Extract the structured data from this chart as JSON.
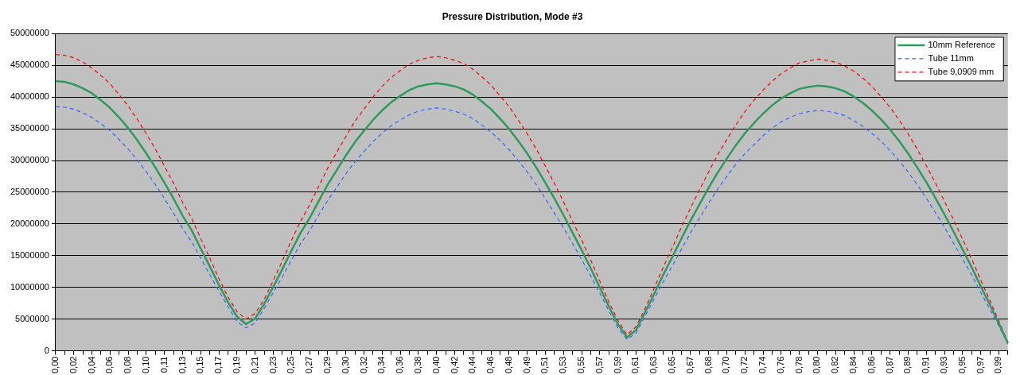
{
  "chart_data": {
    "type": "line",
    "title": "Pressure Distribution, Mode #3",
    "categories": [
      "0,00",
      null,
      "0,02",
      null,
      "0,04",
      null,
      "0,06",
      null,
      "0,08",
      null,
      "0,10",
      null,
      "0,11",
      null,
      "0,13",
      null,
      "0,15",
      null,
      "0,17",
      null,
      "0,19",
      null,
      "0,21",
      null,
      "0,23",
      null,
      "0,25",
      null,
      "0,27",
      null,
      "0,29",
      null,
      "0,30",
      null,
      "0,32",
      null,
      "0,34",
      null,
      "0,36",
      null,
      "0,38",
      null,
      "0,40",
      null,
      "0,42",
      null,
      "0,44",
      null,
      "0,46",
      null,
      "0,48",
      null,
      "0,49",
      null,
      "0,51",
      null,
      "0,53",
      null,
      "0,55",
      null,
      "0,57",
      null,
      "0,59",
      null,
      "0,61",
      null,
      "0,63",
      null,
      "0,65",
      null,
      "0,67",
      null,
      "0,68",
      null,
      "0,70",
      null,
      "0,72",
      null,
      "0,74",
      null,
      "0,76",
      null,
      "0,78",
      null,
      "0,80",
      null,
      "0,82",
      null,
      "0,84",
      null,
      "0,86",
      null,
      "0,87",
      null,
      "0,89",
      null,
      "0,91",
      null,
      "0,93",
      null,
      "0,95",
      null,
      "0,97",
      null,
      "0,99",
      null
    ],
    "series": [
      {
        "name": "10mm Reference",
        "color": "#2e9a5e",
        "line_style": "solid",
        "values": [
          42500000,
          42400000,
          42000000,
          41400000,
          40600000,
          39500000,
          38300000,
          36800000,
          35100000,
          33200000,
          31100000,
          28900000,
          26500000,
          24000000,
          21300000,
          19000000,
          16100000,
          13300000,
          10400000,
          7700000,
          5400000,
          4200000,
          5100000,
          7400000,
          10100000,
          12900000,
          15800000,
          18600000,
          20900000,
          23600000,
          26200000,
          28500000,
          30800000,
          32900000,
          34700000,
          36400000,
          37900000,
          39200000,
          40200000,
          41100000,
          41700000,
          42000000,
          42200000,
          42000000,
          41700000,
          41200000,
          40400000,
          39300000,
          38100000,
          36600000,
          35000000,
          33100000,
          31100000,
          28900000,
          26500000,
          24000000,
          21400000,
          18600000,
          15900000,
          13000000,
          10000000,
          7000000,
          4200000,
          2100000,
          3300000,
          6100000,
          9000000,
          12000000,
          14800000,
          17700000,
          20500000,
          23100000,
          25700000,
          28100000,
          30300000,
          32400000,
          34300000,
          35900000,
          37400000,
          38700000,
          39800000,
          40600000,
          41300000,
          41600000,
          41800000,
          41700000,
          41400000,
          40900000,
          40100000,
          39100000,
          37900000,
          36500000,
          34900000,
          33100000,
          31100000,
          28900000,
          26600000,
          24100000,
          21500000,
          18800000,
          16000000,
          13200000,
          10200000,
          7300000,
          4300000,
          1200000
        ]
      },
      {
        "name": "Tube 11mm",
        "color": "#3366ff",
        "line_style": "dashed",
        "values": [
          38500000,
          38400000,
          38100000,
          37500000,
          36800000,
          35800000,
          34700000,
          33300000,
          31800000,
          30100000,
          28200000,
          26200000,
          24000000,
          21700000,
          19300000,
          17200000,
          14600000,
          12000000,
          9400000,
          7000000,
          4600000,
          3600000,
          4400000,
          6700000,
          9200000,
          11700000,
          14300000,
          16900000,
          18900000,
          21400000,
          23700000,
          25800000,
          27900000,
          29800000,
          31400000,
          33000000,
          34300000,
          35500000,
          36400000,
          37200000,
          37800000,
          38100000,
          38300000,
          38100000,
          37800000,
          37300000,
          36600000,
          35600000,
          34500000,
          33200000,
          31700000,
          30000000,
          28200000,
          26200000,
          24000000,
          21700000,
          19400000,
          16900000,
          14400000,
          11800000,
          9100000,
          6300000,
          3600000,
          1800000,
          2800000,
          5500000,
          8200000,
          10900000,
          13400000,
          16000000,
          18600000,
          20900000,
          23300000,
          25500000,
          27500000,
          29400000,
          31100000,
          32500000,
          33900000,
          35100000,
          36100000,
          36800000,
          37400000,
          37700000,
          37900000,
          37800000,
          37500000,
          37100000,
          36300000,
          35400000,
          34300000,
          33100000,
          31600000,
          30000000,
          28200000,
          26200000,
          24100000,
          21800000,
          19500000,
          17000000,
          14500000,
          12000000,
          9200000,
          6600000,
          3900000,
          1100000
        ]
      },
      {
        "name": "Tube 9,0909 mm",
        "color": "#ff0000",
        "line_style": "dashed",
        "values": [
          46700000,
          46600000,
          46200000,
          45500000,
          44600000,
          43400000,
          42100000,
          40400000,
          38600000,
          36500000,
          34200000,
          31800000,
          29100000,
          26400000,
          23400000,
          20900000,
          17700000,
          14600000,
          11400000,
          8500000,
          6200000,
          5000000,
          5900000,
          8100000,
          11100000,
          14200000,
          17400000,
          20400000,
          23000000,
          25900000,
          28800000,
          31300000,
          33800000,
          36200000,
          38100000,
          40000000,
          41700000,
          43100000,
          44200000,
          45200000,
          45800000,
          46200000,
          46400000,
          46200000,
          45800000,
          45300000,
          44400000,
          43200000,
          41900000,
          40200000,
          38500000,
          36400000,
          34200000,
          31800000,
          29100000,
          26400000,
          23500000,
          20400000,
          17500000,
          14300000,
          11000000,
          7700000,
          4800000,
          2500000,
          3800000,
          6700000,
          9900000,
          13200000,
          16300000,
          19500000,
          22500000,
          25400000,
          28200000,
          30900000,
          33300000,
          35600000,
          37700000,
          39500000,
          41100000,
          42500000,
          43700000,
          44600000,
          45400000,
          45700000,
          46000000,
          45800000,
          45500000,
          44900000,
          44100000,
          43000000,
          41700000,
          40100000,
          38400000,
          36400000,
          34200000,
          31800000,
          29200000,
          26500000,
          23600000,
          20700000,
          17600000,
          14500000,
          11200000,
          8000000,
          4700000,
          1300000
        ]
      }
    ],
    "ylim": [
      0,
      50000000
    ],
    "yticks": [
      0,
      5000000,
      10000000,
      15000000,
      20000000,
      25000000,
      30000000,
      35000000,
      40000000,
      45000000,
      50000000
    ],
    "grid": "y",
    "legend": "top right",
    "marker": "none"
  }
}
